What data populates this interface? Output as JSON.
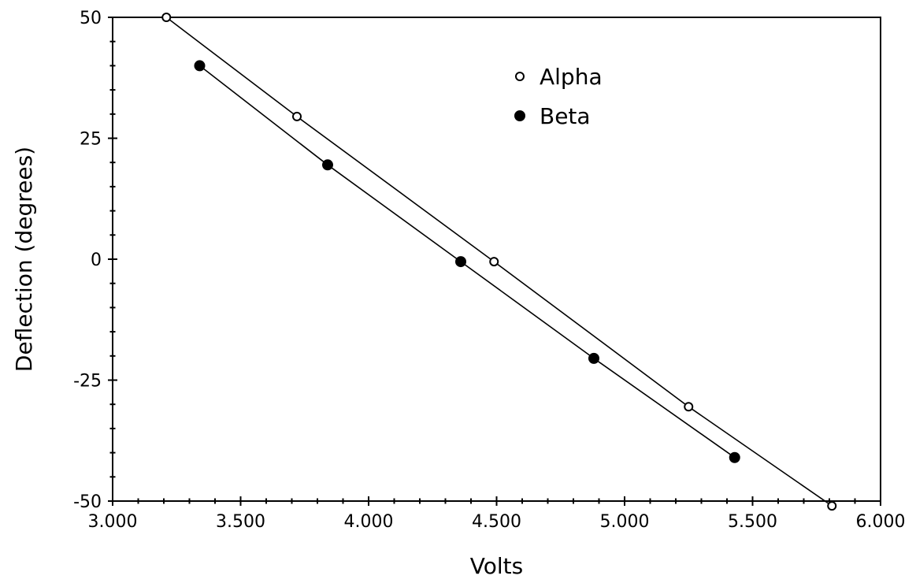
{
  "chart_data": {
    "type": "scatter",
    "title": "",
    "xlabel": "Volts",
    "ylabel": "Deflection (degrees)",
    "xlim": [
      3.0,
      6.0
    ],
    "ylim": [
      -50,
      50
    ],
    "x_ticks": [
      3.0,
      3.5,
      4.0,
      4.5,
      5.0,
      5.5,
      6.0
    ],
    "x_tick_labels": [
      "3.000",
      "3.500",
      "4.000",
      "4.500",
      "5.000",
      "5.500",
      "6.000"
    ],
    "y_ticks": [
      50,
      25,
      0,
      -25,
      -50
    ],
    "y_tick_labels": [
      "50",
      "25",
      "0",
      "-25",
      "-50"
    ],
    "grid": false,
    "legend_position": "top-center",
    "series": [
      {
        "name": "Alpha",
        "marker": "open-circle",
        "color": "#000000",
        "points": [
          {
            "x": 3.21,
            "y": 50
          },
          {
            "x": 3.72,
            "y": 29.5
          },
          {
            "x": 4.49,
            "y": -0.5
          },
          {
            "x": 5.25,
            "y": -30.5
          },
          {
            "x": 5.81,
            "y": -51
          }
        ]
      },
      {
        "name": "Beta",
        "marker": "filled-circle",
        "color": "#000000",
        "points": [
          {
            "x": 3.34,
            "y": 40
          },
          {
            "x": 3.84,
            "y": 19.5
          },
          {
            "x": 4.36,
            "y": -0.5
          },
          {
            "x": 4.88,
            "y": -20.5
          },
          {
            "x": 5.43,
            "y": -41
          }
        ]
      }
    ]
  }
}
